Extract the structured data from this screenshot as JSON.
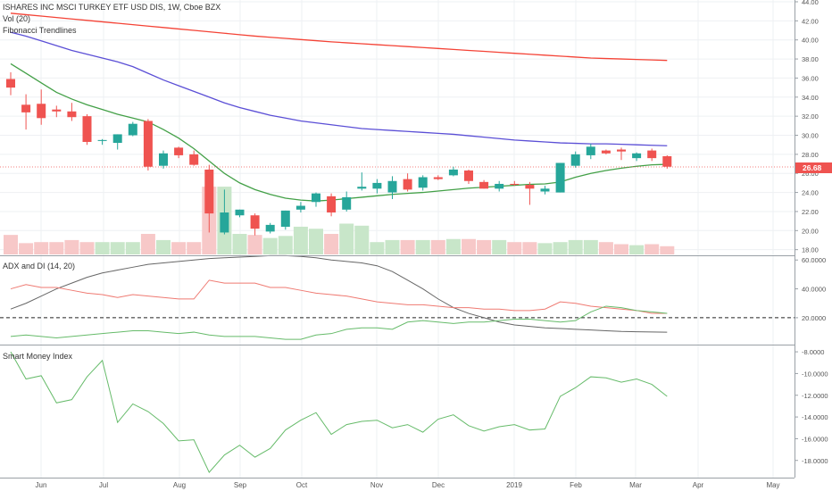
{
  "header": {
    "title": "ISHARES INC MSCI TURKEY ETF USD DIS, 1W, Cboe BZX",
    "vol_label": "Vol (20)",
    "fib_label": "Fibonacci Trendlines"
  },
  "panes": {
    "adx_title": "ADX and DI (14, 20)",
    "smi_title": "Smart Money Index"
  },
  "price_tag": "26.68",
  "colors": {
    "up": "#26a69a",
    "down": "#ef5350",
    "sma_red": "#f44336",
    "sma_blue": "#5b4fd6",
    "sma_green": "#43a047",
    "adx_line": "#666666",
    "di_plus": "#66bb6a",
    "di_minus": "#ef7a72",
    "smi_line": "#66bb6a",
    "vol_up": "#c8e6c9",
    "vol_down": "#f7c8c8",
    "grid": "#eef0f3",
    "axis_text": "#555555"
  },
  "chart_data": [
    {
      "type": "candlestick",
      "title": "ISHARES INC MSCI TURKEY ETF USD DIS, 1W, Cboe BZX",
      "ylim": [
        17.5,
        44
      ],
      "yticks": [
        "18.00",
        "20.00",
        "22.00",
        "24.00",
        "26.00",
        "28.00",
        "30.00",
        "32.00",
        "34.00",
        "36.00",
        "38.00",
        "40.00",
        "42.00",
        "44.00"
      ],
      "xticks": [
        "Jun",
        "Jul",
        "Aug",
        "Sep",
        "Oct",
        "Nov",
        "Dec",
        "2019",
        "Feb",
        "Mar",
        "Apr",
        "May"
      ],
      "last_price": 26.68,
      "candles": [
        {
          "o": 35.9,
          "h": 36.6,
          "l": 34.2,
          "c": 35.0
        },
        {
          "o": 33.2,
          "h": 34.3,
          "l": 30.6,
          "c": 32.4
        },
        {
          "o": 33.3,
          "h": 34.8,
          "l": 31.1,
          "c": 31.8
        },
        {
          "o": 32.7,
          "h": 33.1,
          "l": 31.9,
          "c": 32.5
        },
        {
          "o": 32.5,
          "h": 33.4,
          "l": 31.5,
          "c": 31.9
        },
        {
          "o": 32.0,
          "h": 32.2,
          "l": 29.0,
          "c": 29.3
        },
        {
          "o": 29.4,
          "h": 29.6,
          "l": 29.0,
          "c": 29.5
        },
        {
          "o": 29.2,
          "h": 30.1,
          "l": 28.5,
          "c": 30.1
        },
        {
          "o": 30.0,
          "h": 31.4,
          "l": 29.9,
          "c": 31.2
        },
        {
          "o": 31.5,
          "h": 31.7,
          "l": 26.3,
          "c": 26.7
        },
        {
          "o": 26.8,
          "h": 28.4,
          "l": 26.5,
          "c": 28.1
        },
        {
          "o": 28.7,
          "h": 28.8,
          "l": 27.6,
          "c": 27.9
        },
        {
          "o": 28.0,
          "h": 28.4,
          "l": 26.8,
          "c": 26.9
        },
        {
          "o": 26.4,
          "h": 26.9,
          "l": 19.8,
          "c": 21.8
        },
        {
          "o": 19.8,
          "h": 24.3,
          "l": 19.6,
          "c": 21.9
        },
        {
          "o": 21.6,
          "h": 22.2,
          "l": 21.4,
          "c": 22.2
        },
        {
          "o": 21.6,
          "h": 21.8,
          "l": 19.5,
          "c": 20.2
        },
        {
          "o": 19.9,
          "h": 20.8,
          "l": 19.7,
          "c": 20.6
        },
        {
          "o": 20.4,
          "h": 22.1,
          "l": 20.1,
          "c": 22.1
        },
        {
          "o": 22.2,
          "h": 23.0,
          "l": 21.9,
          "c": 22.6
        },
        {
          "o": 23.0,
          "h": 24.0,
          "l": 22.5,
          "c": 23.9
        },
        {
          "o": 23.6,
          "h": 23.9,
          "l": 21.5,
          "c": 21.9
        },
        {
          "o": 22.2,
          "h": 24.1,
          "l": 22.0,
          "c": 23.5
        },
        {
          "o": 24.4,
          "h": 26.1,
          "l": 24.2,
          "c": 24.6
        },
        {
          "o": 24.4,
          "h": 25.4,
          "l": 23.9,
          "c": 25.0
        },
        {
          "o": 24.0,
          "h": 25.7,
          "l": 23.3,
          "c": 25.2
        },
        {
          "o": 25.4,
          "h": 26.0,
          "l": 24.1,
          "c": 24.3
        },
        {
          "o": 24.5,
          "h": 25.8,
          "l": 24.2,
          "c": 25.6
        },
        {
          "o": 25.6,
          "h": 25.8,
          "l": 25.3,
          "c": 25.4
        },
        {
          "o": 25.8,
          "h": 26.7,
          "l": 25.7,
          "c": 26.4
        },
        {
          "o": 26.3,
          "h": 26.4,
          "l": 24.9,
          "c": 25.2
        },
        {
          "o": 25.1,
          "h": 25.3,
          "l": 24.4,
          "c": 24.4
        },
        {
          "o": 24.4,
          "h": 25.2,
          "l": 24.1,
          "c": 24.9
        },
        {
          "o": 24.9,
          "h": 25.2,
          "l": 24.7,
          "c": 24.8
        },
        {
          "o": 24.8,
          "h": 25.1,
          "l": 22.7,
          "c": 24.4
        },
        {
          "o": 24.1,
          "h": 24.7,
          "l": 23.8,
          "c": 24.4
        },
        {
          "o": 24.0,
          "h": 27.1,
          "l": 24.0,
          "c": 27.1
        },
        {
          "o": 26.8,
          "h": 28.3,
          "l": 26.6,
          "c": 28.0
        },
        {
          "o": 27.9,
          "h": 29.1,
          "l": 27.5,
          "c": 28.8
        },
        {
          "o": 28.4,
          "h": 28.5,
          "l": 28.0,
          "c": 28.1
        },
        {
          "o": 28.5,
          "h": 28.7,
          "l": 27.4,
          "c": 28.3
        },
        {
          "o": 27.6,
          "h": 28.2,
          "l": 27.3,
          "c": 28.1
        },
        {
          "o": 28.4,
          "h": 28.6,
          "l": 27.3,
          "c": 27.6
        },
        {
          "o": 27.8,
          "h": 27.9,
          "l": 26.5,
          "c": 26.7
        }
      ],
      "volume": [
        0.95,
        0.55,
        0.6,
        0.6,
        0.7,
        0.6,
        0.6,
        0.6,
        0.6,
        1.0,
        0.7,
        0.6,
        0.6,
        3.3,
        3.3,
        1.0,
        0.95,
        0.8,
        0.9,
        1.35,
        1.25,
        1.0,
        1.5,
        1.4,
        0.6,
        0.7,
        0.7,
        0.7,
        0.7,
        0.75,
        0.75,
        0.7,
        0.7,
        0.6,
        0.6,
        0.55,
        0.6,
        0.7,
        0.7,
        0.6,
        0.5,
        0.45,
        0.5,
        0.4
      ],
      "series": [
        {
          "values": [
            42.8,
            42.65,
            42.5,
            42.35,
            42.2,
            42.05,
            41.9,
            41.75,
            41.6,
            41.45,
            41.3,
            41.15,
            41.0,
            40.85,
            40.7,
            40.55,
            40.4,
            40.28,
            40.16,
            40.04,
            39.92,
            39.8,
            39.7,
            39.6,
            39.5,
            39.4,
            39.3,
            39.2,
            39.1,
            39.0,
            38.9,
            38.8,
            38.7,
            38.6,
            38.5,
            38.4,
            38.3,
            38.2,
            38.1,
            38.05,
            38.0,
            37.95,
            37.9,
            37.85
          ]
        },
        {
          "values": [
            40.8,
            40.4,
            39.9,
            39.4,
            38.9,
            38.5,
            38.1,
            37.7,
            37.2,
            36.5,
            35.8,
            35.2,
            34.6,
            34.0,
            33.4,
            32.9,
            32.5,
            32.1,
            31.8,
            31.5,
            31.3,
            31.1,
            30.9,
            30.7,
            30.6,
            30.5,
            30.4,
            30.3,
            30.2,
            30.1,
            29.95,
            29.8,
            29.65,
            29.5,
            29.4,
            29.3,
            29.2,
            29.15,
            29.1,
            29.1,
            29.05,
            29.0,
            28.95,
            28.9
          ]
        },
        {
          "values": [
            37.5,
            36.5,
            35.5,
            34.5,
            33.8,
            33.2,
            32.7,
            32.2,
            31.8,
            31.4,
            30.6,
            29.7,
            28.6,
            27.3,
            26.0,
            25.0,
            24.3,
            23.8,
            23.4,
            23.2,
            23.1,
            23.2,
            23.35,
            23.5,
            23.65,
            23.8,
            23.9,
            24.0,
            24.15,
            24.3,
            24.45,
            24.55,
            24.65,
            24.75,
            24.85,
            24.9,
            25.1,
            25.6,
            26.0,
            26.3,
            26.55,
            26.75,
            26.9,
            26.95
          ]
        }
      ]
    },
    {
      "type": "line",
      "title": "ADX and DI (14, 20)",
      "ylim": [
        2,
        62
      ],
      "yticks": [
        "20.0000",
        "40.0000",
        "60.0000"
      ],
      "reference_line": 20,
      "series": [
        {
          "values": [
            26,
            30,
            35,
            40,
            44,
            48,
            51,
            53,
            55,
            57,
            58,
            59,
            60,
            61,
            61.5,
            62,
            62.5,
            63,
            63,
            62.5,
            61.5,
            60,
            59,
            58,
            56,
            52,
            46,
            40,
            33,
            27,
            23,
            20,
            17,
            15,
            14,
            13,
            12.5,
            12,
            11.5,
            11,
            10.5,
            10.3,
            10.1,
            10
          ]
        },
        {
          "values": [
            40,
            43,
            41,
            41,
            39,
            37,
            36,
            34,
            36,
            35,
            34,
            33,
            33,
            46,
            44,
            44,
            44,
            41,
            41,
            39,
            37,
            36,
            35,
            33,
            31,
            30,
            29,
            29,
            28,
            27,
            27,
            26,
            26,
            25,
            25,
            26,
            31,
            30,
            28,
            27,
            26,
            25,
            23,
            23
          ]
        },
        {
          "values": [
            7,
            8,
            7,
            6,
            7,
            8,
            9,
            10,
            11,
            11,
            10,
            9,
            10,
            8,
            7,
            7,
            7,
            6,
            5,
            5,
            8,
            9,
            12,
            13,
            13,
            12,
            17,
            18,
            17,
            16,
            17,
            17,
            18,
            19,
            19,
            18,
            17,
            18,
            24,
            28,
            27,
            25,
            24,
            23
          ]
        }
      ]
    },
    {
      "type": "line",
      "title": "Smart Money Index",
      "ylim": [
        -19.5,
        -7.5
      ],
      "yticks": [
        "-8.0000",
        "-10.0000",
        "-12.0000",
        "-14.0000",
        "-16.0000",
        "-18.0000"
      ],
      "series": [
        {
          "values": [
            -8,
            -10.5,
            -10.2,
            -12.7,
            -12.4,
            -10.3,
            -8.8,
            -14.5,
            -12.8,
            -13.5,
            -14.6,
            -16.2,
            -16.1,
            -19.1,
            -17.5,
            -16.6,
            -17.7,
            -16.9,
            -15.2,
            -14.3,
            -13.6,
            -15.6,
            -14.7,
            -14.4,
            -14.3,
            -15.0,
            -14.7,
            -15.4,
            -14.2,
            -13.8,
            -14.8,
            -15.3,
            -14.9,
            -14.7,
            -15.2,
            -15.1,
            -12.1,
            -11.3,
            -10.3,
            -10.4,
            -10.8,
            -10.5,
            -11.0,
            -12.1
          ]
        }
      ]
    }
  ]
}
